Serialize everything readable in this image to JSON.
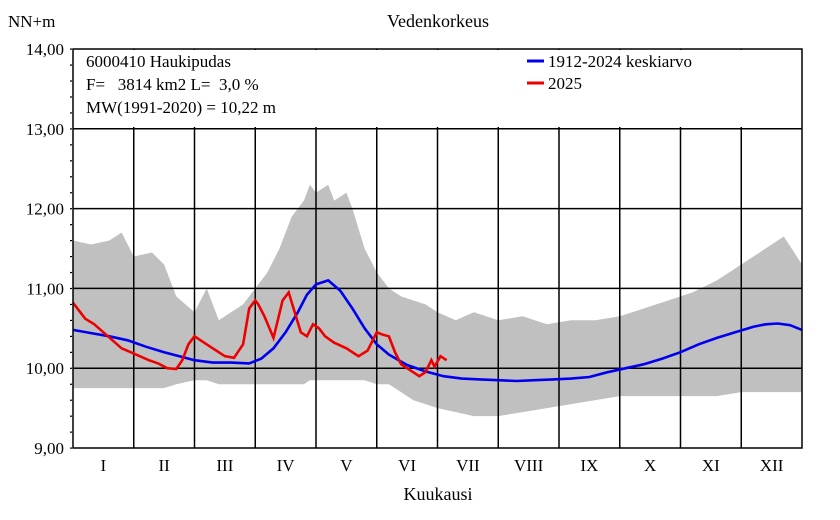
{
  "chart_data": {
    "type": "line",
    "title": "Vedenkorkeus",
    "ylabel": "NN+m",
    "xlabel": "Kuukausi",
    "ylim": [
      9.0,
      14.0
    ],
    "y_ticks": [
      "9,00",
      "10,00",
      "11,00",
      "12,00",
      "13,00",
      "14,00"
    ],
    "x_ticks": [
      "I",
      "II",
      "III",
      "IV",
      "V",
      "VI",
      "VII",
      "VIII",
      "IX",
      "X",
      "XI",
      "XII"
    ],
    "info_lines": [
      "6000410 Haukipudas",
      "F=   3814 km2 L=  3,0 %",
      "MW(1991-2020) = 10,22 m"
    ],
    "legend": [
      {
        "label": "1912-2024 keskiarvo",
        "color": "#0000ee"
      },
      {
        "label": "2025",
        "color": "#ee0000"
      }
    ],
    "colors": {
      "range_band": "#c0c0c0",
      "mean": "#0000ee",
      "year2025": "#ee0000"
    },
    "range_band": {
      "x": [
        0,
        0.3,
        0.6,
        0.8,
        1.0,
        1.3,
        1.5,
        1.7,
        2.0,
        2.2,
        2.4,
        2.6,
        2.8,
        3.0,
        3.2,
        3.4,
        3.6,
        3.8,
        3.9,
        4.0,
        4.2,
        4.3,
        4.5,
        4.6,
        4.8,
        5.0,
        5.2,
        5.4,
        5.6,
        5.8,
        6.0,
        6.3,
        6.6,
        7.0,
        7.4,
        7.8,
        8.2,
        8.6,
        9.0,
        9.4,
        9.8,
        10.2,
        10.6,
        11.0,
        11.4,
        11.7,
        12.0
      ],
      "max": [
        11.6,
        11.55,
        11.6,
        11.7,
        11.4,
        11.45,
        11.3,
        10.9,
        10.7,
        11.0,
        10.6,
        10.7,
        10.8,
        11.0,
        11.2,
        11.5,
        11.9,
        12.1,
        12.3,
        12.2,
        12.3,
        12.1,
        12.2,
        12.0,
        11.5,
        11.2,
        11.0,
        10.9,
        10.85,
        10.8,
        10.7,
        10.6,
        10.7,
        10.6,
        10.65,
        10.55,
        10.6,
        10.6,
        10.65,
        10.75,
        10.85,
        10.95,
        11.1,
        11.3,
        11.5,
        11.65,
        11.3
      ],
      "min": [
        9.75,
        9.75,
        9.75,
        9.75,
        9.75,
        9.75,
        9.75,
        9.8,
        9.85,
        9.85,
        9.8,
        9.8,
        9.8,
        9.8,
        9.8,
        9.8,
        9.8,
        9.8,
        9.85,
        9.85,
        9.85,
        9.85,
        9.85,
        9.85,
        9.85,
        9.8,
        9.8,
        9.7,
        9.6,
        9.55,
        9.5,
        9.45,
        9.4,
        9.4,
        9.45,
        9.5,
        9.55,
        9.6,
        9.65,
        9.65,
        9.65,
        9.65,
        9.65,
        9.7,
        9.7,
        9.7,
        9.7
      ]
    },
    "series": [
      {
        "name": "1912-2024 keskiarvo",
        "x": [
          0,
          0.3,
          0.6,
          0.9,
          1.2,
          1.5,
          1.8,
          2.0,
          2.3,
          2.6,
          2.9,
          3.1,
          3.3,
          3.5,
          3.7,
          3.85,
          4.0,
          4.2,
          4.4,
          4.6,
          4.8,
          5.0,
          5.2,
          5.5,
          5.8,
          6.1,
          6.4,
          6.7,
          7.0,
          7.3,
          7.6,
          7.9,
          8.2,
          8.5,
          8.8,
          9.1,
          9.4,
          9.7,
          10.0,
          10.3,
          10.6,
          10.9,
          11.2,
          11.4,
          11.6,
          11.8,
          12.0
        ],
        "y": [
          10.48,
          10.44,
          10.4,
          10.35,
          10.27,
          10.2,
          10.14,
          10.1,
          10.07,
          10.07,
          10.06,
          10.12,
          10.25,
          10.45,
          10.7,
          10.92,
          11.05,
          11.1,
          10.97,
          10.75,
          10.5,
          10.3,
          10.17,
          10.04,
          9.96,
          9.9,
          9.87,
          9.86,
          9.85,
          9.84,
          9.85,
          9.86,
          9.87,
          9.89,
          9.95,
          10.0,
          10.05,
          10.12,
          10.2,
          10.3,
          10.38,
          10.45,
          10.52,
          10.55,
          10.56,
          10.54,
          10.48
        ]
      },
      {
        "name": "2025",
        "x": [
          0,
          0.1,
          0.2,
          0.35,
          0.5,
          0.65,
          0.8,
          0.95,
          1.1,
          1.25,
          1.4,
          1.55,
          1.7,
          1.8,
          1.9,
          2.0,
          2.1,
          2.3,
          2.5,
          2.65,
          2.8,
          2.9,
          3.0,
          3.05,
          3.15,
          3.3,
          3.45,
          3.55,
          3.65,
          3.75,
          3.85,
          3.95,
          4.05,
          4.15,
          4.3,
          4.5,
          4.7,
          4.85,
          5.0,
          5.1,
          5.2,
          5.3,
          5.4,
          5.5,
          5.6,
          5.7,
          5.8,
          5.9,
          5.95,
          6.05,
          6.15
        ],
        "y": [
          10.82,
          10.72,
          10.62,
          10.55,
          10.45,
          10.35,
          10.25,
          10.2,
          10.15,
          10.1,
          10.06,
          10.0,
          9.99,
          10.1,
          10.3,
          10.4,
          10.35,
          10.25,
          10.15,
          10.13,
          10.3,
          10.75,
          10.85,
          10.8,
          10.65,
          10.38,
          10.85,
          10.95,
          10.7,
          10.45,
          10.4,
          10.55,
          10.5,
          10.4,
          10.32,
          10.25,
          10.15,
          10.22,
          10.45,
          10.42,
          10.4,
          10.2,
          10.05,
          10.0,
          9.95,
          9.9,
          9.95,
          10.1,
          10.02,
          10.15,
          10.1
        ]
      }
    ]
  }
}
